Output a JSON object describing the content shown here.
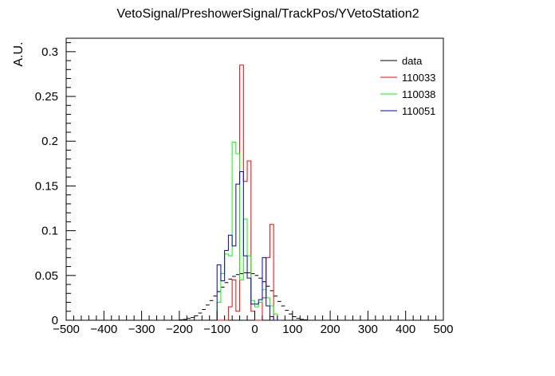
{
  "chart_data": {
    "type": "histogram",
    "title": "VetoSignal/PreshowerSignal/TrackPos/YVetoStation2",
    "xlabel": "",
    "ylabel": "A.U.",
    "xlim": [
      -500,
      500
    ],
    "ylim": [
      0,
      0.315
    ],
    "grid": false,
    "legend_position": "top-right",
    "x_ticks": [
      "−500",
      "−400",
      "−300",
      "−200",
      "−100",
      "0",
      "100",
      "200",
      "300",
      "400",
      "500"
    ],
    "y_ticks": [
      "0",
      "0.05",
      "0.1",
      "0.15",
      "0.2",
      "0.25",
      "0.3"
    ],
    "bin_width": 10,
    "series": [
      {
        "name": "data",
        "color": "#000000",
        "style": "error-bars",
        "bin_centers": [
          -495,
          -485,
          -475,
          -465,
          -455,
          -445,
          -435,
          -425,
          -415,
          -405,
          -395,
          -385,
          -375,
          -365,
          -355,
          -345,
          -335,
          -325,
          -315,
          -305,
          -295,
          -285,
          -275,
          -265,
          -255,
          -245,
          -235,
          -225,
          -215,
          -205,
          -195,
          -185,
          -175,
          -165,
          -155,
          -145,
          -135,
          -125,
          -115,
          -105,
          -95,
          -85,
          -75,
          -65,
          -55,
          -45,
          -35,
          -25,
          -15,
          -5,
          5,
          15,
          25,
          35,
          45,
          55,
          65,
          75,
          85,
          95,
          105,
          115,
          125,
          135,
          145,
          155,
          165,
          175,
          185,
          195,
          205,
          215,
          225,
          235,
          245,
          255,
          265,
          275,
          285,
          295,
          305,
          315,
          325,
          335,
          345,
          355,
          365,
          375,
          385,
          395,
          405,
          415,
          425,
          435,
          445,
          455,
          465,
          475,
          485,
          495
        ],
        "values": [
          0,
          0,
          0,
          0,
          0,
          0,
          0,
          0,
          0,
          0,
          0,
          0,
          0,
          0,
          0,
          0,
          0,
          0,
          0,
          0,
          0,
          0,
          0,
          0,
          0,
          0,
          0,
          0,
          0,
          0,
          0.0005,
          0.001,
          0.002,
          0.003,
          0.005,
          0.008,
          0.012,
          0.017,
          0.022,
          0.027,
          0.032,
          0.037,
          0.042,
          0.046,
          0.049,
          0.051,
          0.052,
          0.053,
          0.053,
          0.052,
          0.05,
          0.047,
          0.043,
          0.038,
          0.033,
          0.027,
          0.021,
          0.016,
          0.011,
          0.007,
          0.004,
          0.002,
          0.001,
          0.0005,
          0,
          0,
          0,
          0,
          0,
          0,
          0,
          0,
          0,
          0,
          0,
          0,
          0,
          0,
          0,
          0,
          0,
          0,
          0,
          0,
          0,
          0,
          0,
          0,
          0,
          0,
          0,
          0,
          0,
          0,
          0,
          0,
          0,
          0,
          0,
          0
        ]
      },
      {
        "name": "110033",
        "color": "#ff0000",
        "style": "step",
        "bin_edges": [
          -100,
          -90,
          -80,
          -70,
          -60,
          -50,
          -40,
          -30,
          -20,
          -10,
          0,
          10,
          20,
          30,
          40,
          50,
          60,
          70
        ],
        "values": [
          0,
          0,
          0,
          0.015,
          0.045,
          0.01,
          0.285,
          0.155,
          0.178,
          0.01,
          0,
          0,
          0.025,
          0.07,
          0.107,
          0,
          0
        ]
      },
      {
        "name": "110038",
        "color": "#00ff00",
        "style": "step",
        "bin_edges": [
          -100,
          -90,
          -80,
          -70,
          -60,
          -50,
          -40,
          -30,
          -20,
          -10,
          0,
          10,
          20,
          30,
          40,
          50,
          60,
          70
        ],
        "values": [
          0.02,
          0.052,
          0.074,
          0.072,
          0.199,
          0.186,
          0.045,
          0.113,
          0.072,
          0.022,
          0.015,
          0.02,
          0.034,
          0.025,
          0.016,
          0.007,
          0
        ]
      },
      {
        "name": "110051",
        "color": "#0000cc",
        "style": "step",
        "bin_edges": [
          -100,
          -90,
          -80,
          -70,
          -60,
          -50,
          -40,
          -30,
          -20,
          -10,
          0,
          10,
          20,
          30,
          40,
          50,
          60,
          70
        ],
        "values": [
          0.062,
          0.044,
          0.078,
          0.095,
          0.083,
          0.152,
          0.166,
          0.072,
          0.047,
          0.018,
          0.018,
          0.023,
          0.07,
          0.016,
          0.004,
          0,
          0
        ]
      }
    ]
  }
}
